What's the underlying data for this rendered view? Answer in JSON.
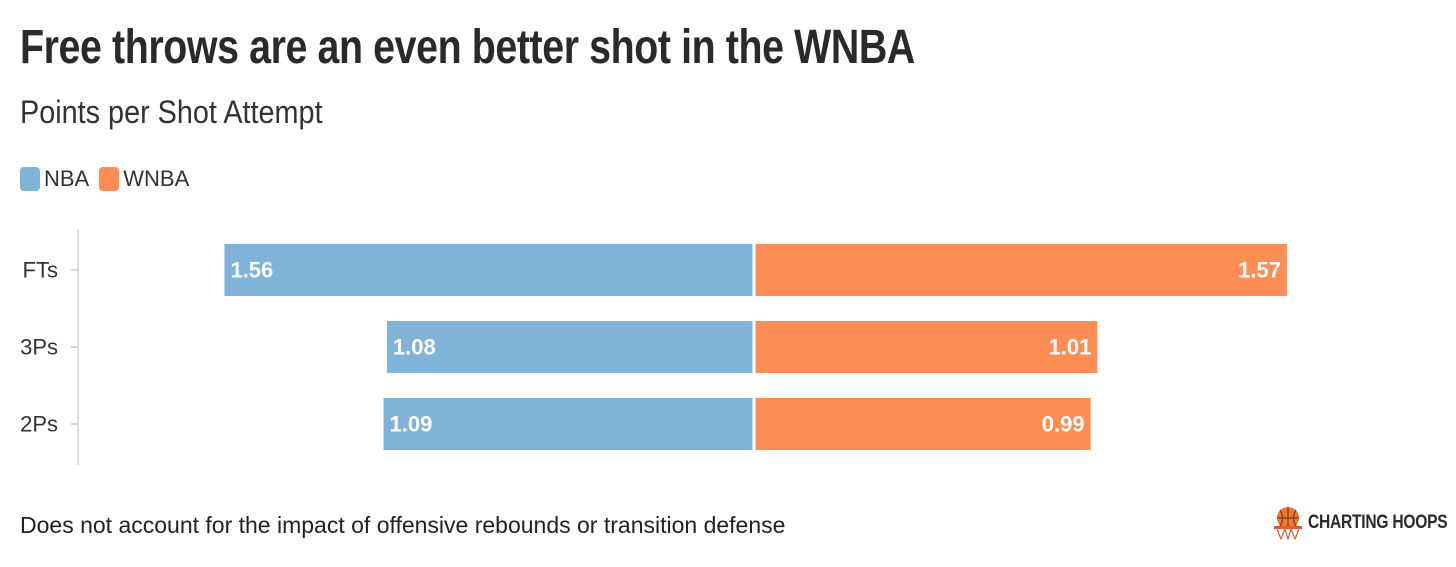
{
  "chart_data": {
    "type": "bar",
    "orientation": "horizontal-diverging",
    "title": "Free throws are an even better shot in the WNBA",
    "subtitle": "Points per Shot Attempt",
    "categories": [
      "FTs",
      "3Ps",
      "2Ps"
    ],
    "series": [
      {
        "name": "NBA",
        "color": "#7fb3da",
        "direction": "left",
        "values": [
          1.56,
          1.08,
          1.09
        ]
      },
      {
        "name": "WNBA",
        "color": "#fe8d55",
        "direction": "right",
        "values": [
          1.57,
          1.01,
          0.99
        ]
      }
    ],
    "value_labels": {
      "NBA": [
        "1.56",
        "1.08",
        "1.09"
      ],
      "WNBA": [
        "1.57",
        "1.01",
        "0.99"
      ]
    },
    "grid": false,
    "legend_position": "top-left"
  },
  "legend": [
    {
      "label": "NBA",
      "color": "#7fb3da"
    },
    {
      "label": "WNBA",
      "color": "#fe8d55"
    }
  ],
  "footnote": "Does not account for the impact of offensive rebounds or transition defense",
  "logo": {
    "text": "CHARTING HOOPS",
    "icon": "basketball-hoop-icon",
    "accent_color": "#f07833"
  }
}
